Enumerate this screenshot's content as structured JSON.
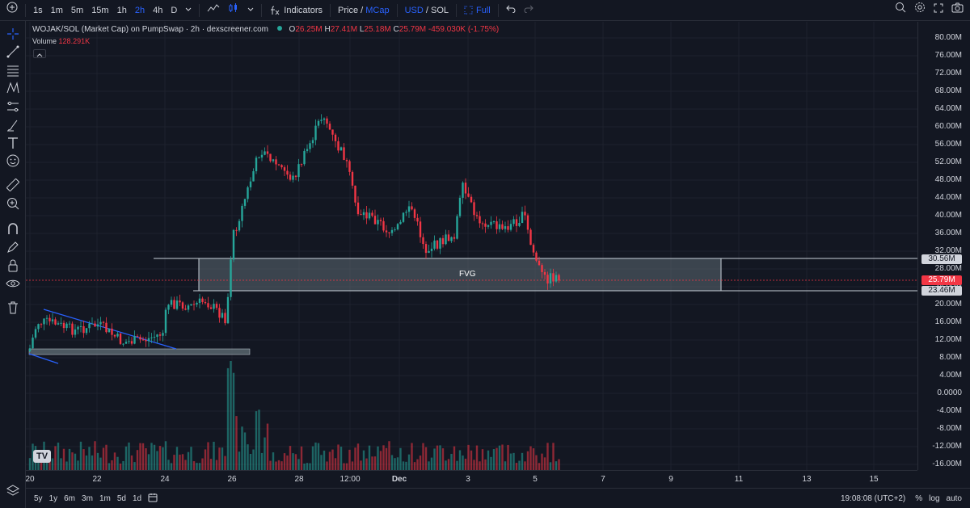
{
  "toolbar": {
    "intervals": [
      "1s",
      "1m",
      "5m",
      "15m",
      "1h",
      "2h",
      "4h",
      "D"
    ],
    "active_interval": "2h",
    "indicators_label": "Indicators",
    "price_label": "Price",
    "mcap_label": "MCap",
    "usd_label": "USD",
    "sol_label": "SOL",
    "full_label": "Full"
  },
  "legend": {
    "title": "WOJAK/SOL (Market Cap) on PumpSwap · 2h · dexscreener.com",
    "o_label": "O",
    "o_value": "26.25M",
    "h_label": "H",
    "h_value": "27.41M",
    "l_label": "L",
    "l_value": "25.18M",
    "c_label": "C",
    "c_value": "25.79M",
    "change": "-459.030K (-1.75%)",
    "volume_label": "Volume",
    "volume_value": "128.291K"
  },
  "fvg_label": "FVG",
  "price_axis": {
    "ticks": [
      "80.00M",
      "76.00M",
      "72.00M",
      "68.00M",
      "64.00M",
      "60.00M",
      "56.00M",
      "52.00M",
      "48.00M",
      "44.00M",
      "40.00M",
      "36.00M",
      "32.00M",
      "28.00M",
      "24.00M",
      "20.00M",
      "16.00M",
      "12.00M",
      "8.00M",
      "4.00M",
      "0.0000",
      "-4.00M",
      "-8.00M",
      "-12.00M",
      "-16.00M"
    ],
    "tag_upper": "30.56M",
    "tag_current": "25.79M",
    "tag_lower": "23.46M"
  },
  "time_axis": [
    "20",
    "22",
    "24",
    "26",
    "28",
    "12:00",
    "Dec",
    "3",
    "5",
    "7",
    "9",
    "11",
    "13",
    "15"
  ],
  "bottom": {
    "ranges": [
      "5y",
      "1y",
      "6m",
      "3m",
      "1m",
      "5d",
      "1d"
    ],
    "clock": "19:08:08 (UTC+2)",
    "percent": "%",
    "log": "log",
    "auto": "auto"
  },
  "logo_text": "TV",
  "colors": {
    "up": "#26a69a",
    "down": "#f23645",
    "background": "#131722",
    "accent": "#2962ff"
  }
}
